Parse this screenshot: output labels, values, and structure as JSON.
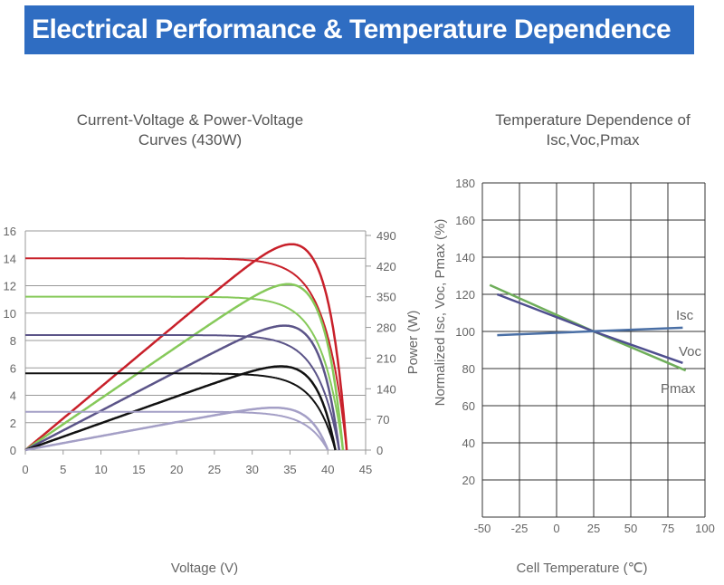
{
  "header": {
    "title": "Electrical Performance & Temperature Dependence"
  },
  "chart_data": [
    {
      "type": "line",
      "title": "Current-Voltage & Power-Voltage Curves (430W)",
      "title_lines": [
        "Current-Voltage & Power-Voltage",
        "Curves (430W)"
      ],
      "xlabel": "Voltage (V)",
      "ylabel": "",
      "y2label": "Power (W)",
      "xlim": [
        0,
        45
      ],
      "ylim": [
        0,
        16
      ],
      "y2lim": [
        0,
        490
      ],
      "x_ticks": [
        "0",
        "5",
        "10",
        "15",
        "20",
        "25",
        "30",
        "35",
        "40",
        "45"
      ],
      "y_ticks": [
        "0",
        "2",
        "4",
        "6",
        "8",
        "10",
        "12",
        "14",
        "16"
      ],
      "y2_ticks": [
        "0",
        "70",
        "140",
        "210",
        "280",
        "350",
        "420",
        "490"
      ],
      "grid": "horizontal",
      "series": [
        {
          "color": "#c8202a",
          "isc": 14.0,
          "voc": 42.5,
          "vmp": 35.3,
          "pmax": 470
        },
        {
          "color": "#86c95a",
          "isc": 11.2,
          "voc": 42.0,
          "vmp": 35.3,
          "pmax": 378
        },
        {
          "color": "#5b5488",
          "isc": 8.4,
          "voc": 41.5,
          "vmp": 35.3,
          "pmax": 282
        },
        {
          "color": "#111111",
          "isc": 5.6,
          "voc": 41.0,
          "vmp": 35.3,
          "pmax": 188
        },
        {
          "color": "#a49fc6",
          "isc": 2.8,
          "voc": 40.0,
          "vmp": 35.0,
          "pmax": 93
        }
      ]
    },
    {
      "type": "line",
      "title": "Temperature Dependence of Isc,Voc,Pmax",
      "title_lines": [
        "Temperature Dependence of",
        "Isc,Voc,Pmax"
      ],
      "xlabel": "Cell Temperature (℃)",
      "ylabel": "Normalized Isc, Voc, Pmax (%)",
      "xlim": [
        -50,
        100
      ],
      "ylim": [
        0,
        180
      ],
      "x_ticks": [
        "-50",
        "-25",
        "0",
        "25",
        "50",
        "75",
        "100"
      ],
      "y_ticks": [
        "20",
        "40",
        "60",
        "80",
        "100",
        "120",
        "140",
        "160",
        "180"
      ],
      "grid": "both",
      "series": [
        {
          "name": "Isc",
          "color": "#4a6fa5",
          "x": [
            -40,
            85
          ],
          "y": [
            98,
            102
          ]
        },
        {
          "name": "Voc",
          "color": "#4f4f8f",
          "x": [
            -40,
            25,
            85
          ],
          "y": [
            120,
            100,
            83
          ]
        },
        {
          "name": "Pmax",
          "color": "#6fae5a",
          "x": [
            -45,
            25,
            87
          ],
          "y": [
            125,
            100,
            79
          ]
        }
      ]
    }
  ]
}
